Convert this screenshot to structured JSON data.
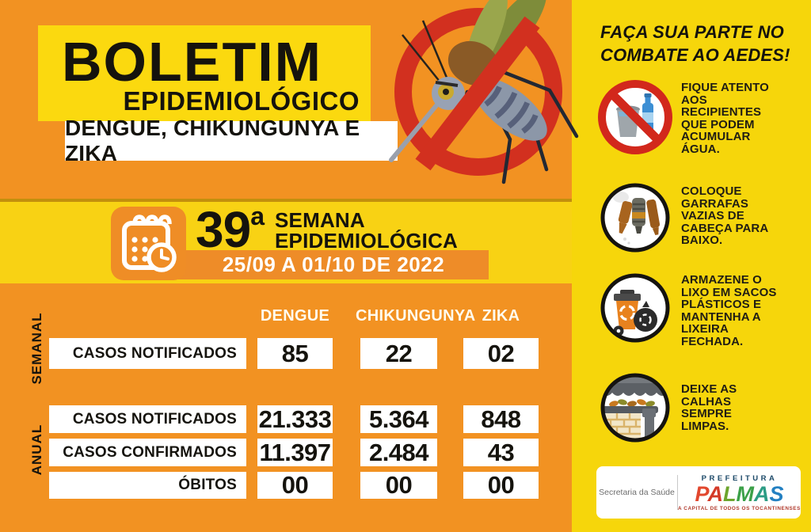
{
  "header": {
    "title_line1": "BOLETIM",
    "title_line2": "EPIDEMIOLÓGICO",
    "subtitle": "DENGUE, CHIKUNGUNYA E ZIKA"
  },
  "week_banner": {
    "week_number": "39",
    "week_ordinal": "a",
    "label_line1": "SEMANA",
    "label_line2": "EPIDEMIOLÓGICA",
    "date_range": "25/09 A 01/10 DE 2022"
  },
  "table": {
    "columns": [
      "DENGUE",
      "CHIKUNGUNYA",
      "ZIKA"
    ],
    "sections": [
      {
        "label": "SEMANAL",
        "rows": [
          {
            "label": "CASOS NOTIFICADOS",
            "values": [
              "85",
              "22",
              "02"
            ]
          }
        ]
      },
      {
        "label": "ANUAL",
        "rows": [
          {
            "label": "CASOS NOTIFICADOS",
            "values": [
              "21.333",
              "5.364",
              "848"
            ]
          },
          {
            "label": "CASOS CONFIRMADOS",
            "values": [
              "11.397",
              "2.484",
              "43"
            ]
          },
          {
            "label": "ÓBITOS",
            "values": [
              "00",
              "00",
              "00"
            ]
          }
        ]
      }
    ]
  },
  "sidebar": {
    "title_line1": "FAÇA SUA PARTE NO",
    "title_line2": "COMBATE AO AEDES!",
    "tips": [
      {
        "icon": "no-water-containers-icon",
        "text": "FIQUE ATENTO AOS RECIPIENTES QUE PODEM ACUMULAR ÁGUA."
      },
      {
        "icon": "bottles-upside-down-icon",
        "text": "COLOQUE GARRAFAS VAZIAS DE CABEÇA PARA BAIXO."
      },
      {
        "icon": "closed-trash-bin-icon",
        "text": "ARMAZENE O LIXO EM SACOS PLÁSTICOS E MANTENHA A LIXEIRA FECHADA."
      },
      {
        "icon": "clean-gutter-icon",
        "text": "DEIXE AS CALHAS SEMPRE LIMPAS."
      }
    ],
    "footer": {
      "department": "Secretaria da Saúde",
      "logo_top": "PREFEITURA",
      "logo_name": "PALMAS",
      "logo_tagline": "A CAPITAL DE TODOS OS TOCANTINENSES"
    }
  },
  "colors": {
    "background_orange": "#F29222",
    "banner_orange": "#EE8C28",
    "yellow_band": "#F8D214",
    "yellow_sidebar": "#F6D60B",
    "yellow_title_box": "#FBD90F",
    "prohibition_red": "#D2301F",
    "text_black": "#15130d",
    "header_text": "#FFFBEE",
    "logo_blue": "#1c4968",
    "logo_tagline_red": "#b0392b",
    "palmas_letters": [
      "#E2472E",
      "#D43A28",
      "#6CA52D",
      "#3BA048",
      "#2C9C84",
      "#2380C2"
    ]
  }
}
